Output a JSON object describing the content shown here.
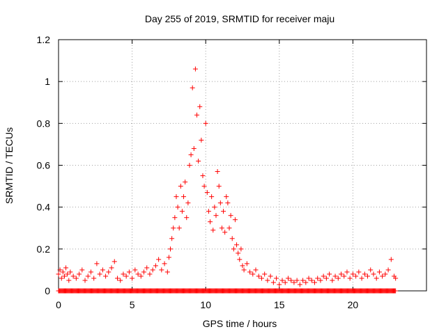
{
  "chart_data": {
    "type": "scatter",
    "title": "Day 255 of 2019, SRMTID for receiver maju",
    "xlabel": "GPS time / hours",
    "ylabel": "SRMTID / TECUs",
    "xlim": [
      0,
      25
    ],
    "ylim": [
      0,
      1.2
    ],
    "xticks": [
      0,
      5,
      10,
      15,
      20
    ],
    "xtick_labels": [
      "0",
      "5",
      "10",
      "15",
      "20"
    ],
    "yticks": [
      0,
      0.2,
      0.4,
      0.6,
      0.8,
      1.0,
      1.2
    ],
    "ytick_labels": [
      "0",
      "0.2",
      "0.4",
      "0.6",
      "0.8",
      "1",
      "1.2"
    ],
    "grid": true,
    "marker": "+",
    "color": "#ff0000",
    "series": [
      {
        "name": "SRMTID",
        "points": [
          [
            0.0,
            0.08
          ],
          [
            0.1,
            0.1
          ],
          [
            0.2,
            0.06
          ],
          [
            0.3,
            0.09
          ],
          [
            0.4,
            0.07
          ],
          [
            0.5,
            0.11
          ],
          [
            0.6,
            0.08
          ],
          [
            0.7,
            0.05
          ],
          [
            0.8,
            0.09
          ],
          [
            1.0,
            0.07
          ],
          [
            1.2,
            0.06
          ],
          [
            1.4,
            0.08
          ],
          [
            1.6,
            0.1
          ],
          [
            1.8,
            0.05
          ],
          [
            2.0,
            0.07
          ],
          [
            2.2,
            0.09
          ],
          [
            2.4,
            0.06
          ],
          [
            2.6,
            0.13
          ],
          [
            2.8,
            0.08
          ],
          [
            3.0,
            0.1
          ],
          [
            3.2,
            0.07
          ],
          [
            3.4,
            0.09
          ],
          [
            3.6,
            0.11
          ],
          [
            3.8,
            0.14
          ],
          [
            4.0,
            0.06
          ],
          [
            4.2,
            0.05
          ],
          [
            4.4,
            0.08
          ],
          [
            4.6,
            0.07
          ],
          [
            4.8,
            0.09
          ],
          [
            5.0,
            0.06
          ],
          [
            5.2,
            0.1
          ],
          [
            5.4,
            0.08
          ],
          [
            5.6,
            0.07
          ],
          [
            5.8,
            0.09
          ],
          [
            6.0,
            0.11
          ],
          [
            6.2,
            0.08
          ],
          [
            6.4,
            0.1
          ],
          [
            6.6,
            0.12
          ],
          [
            6.8,
            0.15
          ],
          [
            7.0,
            0.1
          ],
          [
            7.2,
            0.13
          ],
          [
            7.4,
            0.09
          ],
          [
            7.5,
            0.16
          ],
          [
            7.6,
            0.2
          ],
          [
            7.7,
            0.25
          ],
          [
            7.8,
            0.3
          ],
          [
            7.9,
            0.35
          ],
          [
            8.0,
            0.45
          ],
          [
            8.1,
            0.4
          ],
          [
            8.2,
            0.3
          ],
          [
            8.3,
            0.5
          ],
          [
            8.4,
            0.38
          ],
          [
            8.5,
            0.45
          ],
          [
            8.6,
            0.52
          ],
          [
            8.7,
            0.35
          ],
          [
            8.8,
            0.42
          ],
          [
            8.9,
            0.6
          ],
          [
            9.0,
            0.65
          ],
          [
            9.1,
            0.97
          ],
          [
            9.2,
            0.68
          ],
          [
            9.3,
            1.06
          ],
          [
            9.4,
            0.84
          ],
          [
            9.5,
            0.62
          ],
          [
            9.6,
            0.88
          ],
          [
            9.7,
            0.72
          ],
          [
            9.8,
            0.55
          ],
          [
            9.9,
            0.5
          ],
          [
            10.0,
            0.8
          ],
          [
            10.1,
            0.47
          ],
          [
            10.2,
            0.38
          ],
          [
            10.3,
            0.33
          ],
          [
            10.4,
            0.45
          ],
          [
            10.5,
            0.29
          ],
          [
            10.6,
            0.4
          ],
          [
            10.7,
            0.36
          ],
          [
            10.8,
            0.57
          ],
          [
            10.9,
            0.5
          ],
          [
            11.0,
            0.42
          ],
          [
            11.1,
            0.3
          ],
          [
            11.2,
            0.38
          ],
          [
            11.3,
            0.28
          ],
          [
            11.4,
            0.45
          ],
          [
            11.5,
            0.42
          ],
          [
            11.6,
            0.3
          ],
          [
            11.7,
            0.36
          ],
          [
            11.8,
            0.25
          ],
          [
            11.9,
            0.2
          ],
          [
            12.0,
            0.34
          ],
          [
            12.1,
            0.22
          ],
          [
            12.2,
            0.18
          ],
          [
            12.3,
            0.15
          ],
          [
            12.4,
            0.2
          ],
          [
            12.5,
            0.12
          ],
          [
            12.6,
            0.1
          ],
          [
            12.8,
            0.13
          ],
          [
            13.0,
            0.09
          ],
          [
            13.2,
            0.08
          ],
          [
            13.4,
            0.1
          ],
          [
            13.6,
            0.07
          ],
          [
            13.8,
            0.06
          ],
          [
            14.0,
            0.08
          ],
          [
            14.2,
            0.05
          ],
          [
            14.4,
            0.07
          ],
          [
            14.6,
            0.04
          ],
          [
            14.8,
            0.06
          ],
          [
            15.0,
            0.03
          ],
          [
            15.2,
            0.05
          ],
          [
            15.4,
            0.04
          ],
          [
            15.6,
            0.06
          ],
          [
            15.8,
            0.05
          ],
          [
            16.0,
            0.04
          ],
          [
            16.2,
            0.05
          ],
          [
            16.4,
            0.03
          ],
          [
            16.6,
            0.05
          ],
          [
            16.8,
            0.04
          ],
          [
            17.0,
            0.06
          ],
          [
            17.2,
            0.05
          ],
          [
            17.4,
            0.04
          ],
          [
            17.6,
            0.06
          ],
          [
            17.8,
            0.05
          ],
          [
            18.0,
            0.07
          ],
          [
            18.2,
            0.06
          ],
          [
            18.4,
            0.08
          ],
          [
            18.6,
            0.05
          ],
          [
            18.8,
            0.07
          ],
          [
            19.0,
            0.06
          ],
          [
            19.2,
            0.08
          ],
          [
            19.4,
            0.07
          ],
          [
            19.6,
            0.09
          ],
          [
            19.8,
            0.06
          ],
          [
            20.0,
            0.08
          ],
          [
            20.2,
            0.07
          ],
          [
            20.4,
            0.09
          ],
          [
            20.6,
            0.06
          ],
          [
            20.8,
            0.08
          ],
          [
            21.0,
            0.07
          ],
          [
            21.2,
            0.1
          ],
          [
            21.4,
            0.08
          ],
          [
            21.6,
            0.06
          ],
          [
            21.8,
            0.09
          ],
          [
            22.0,
            0.07
          ],
          [
            22.2,
            0.08
          ],
          [
            22.4,
            0.1
          ],
          [
            22.6,
            0.15
          ],
          [
            22.8,
            0.07
          ],
          [
            22.9,
            0.06
          ]
        ]
      }
    ],
    "baseline_marks": {
      "y": 0,
      "x_start": 0.0,
      "x_end": 22.9,
      "x_step": 0.05
    }
  }
}
